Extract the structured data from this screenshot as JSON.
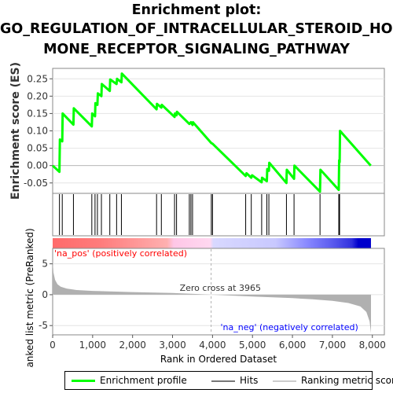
{
  "title_lines": [
    "Enrichment plot:",
    "GO_REGULATION_OF_INTRACELLULAR_STEROID_HOR",
    "MONE_RECEPTOR_SIGNALING_PATHWAY"
  ],
  "colors": {
    "enrichment_line": "#00ff00",
    "hit_line": "#000000",
    "metric_fill": "#b0b0b0",
    "pos_label": "#ff0000",
    "neg_label": "#0000ff",
    "zero_line": "#b0b0b0"
  },
  "chart_data": [
    {
      "type": "line",
      "panel": "enrichment",
      "ylabel": "Enrichment score (ES)",
      "xlim": [
        0,
        8300
      ],
      "ylim": [
        -0.08,
        0.28
      ],
      "yticks": [
        "0.25",
        "0.20",
        "0.15",
        "0.10",
        "0.05",
        "0.00",
        "-0.05"
      ],
      "ytick_values": [
        0.25,
        0.2,
        0.15,
        0.1,
        0.05,
        0.0,
        -0.05
      ],
      "series": [
        {
          "name": "Enrichment profile",
          "points": [
            [
              0,
              0.0
            ],
            [
              170,
              -0.018
            ],
            [
              180,
              0.075
            ],
            [
              240,
              0.07
            ],
            [
              250,
              0.15
            ],
            [
              520,
              0.118
            ],
            [
              530,
              0.165
            ],
            [
              980,
              0.113
            ],
            [
              990,
              0.15
            ],
            [
              1060,
              0.142
            ],
            [
              1070,
              0.18
            ],
            [
              1120,
              0.175
            ],
            [
              1130,
              0.208
            ],
            [
              1220,
              0.2
            ],
            [
              1230,
              0.235
            ],
            [
              1430,
              0.215
            ],
            [
              1440,
              0.248
            ],
            [
              1600,
              0.235
            ],
            [
              1610,
              0.25
            ],
            [
              1720,
              0.24
            ],
            [
              1730,
              0.265
            ],
            [
              2600,
              0.162
            ],
            [
              2610,
              0.178
            ],
            [
              2720,
              0.167
            ],
            [
              2730,
              0.175
            ],
            [
              3050,
              0.14
            ],
            [
              3060,
              0.15
            ],
            [
              3100,
              0.145
            ],
            [
              3110,
              0.155
            ],
            [
              3420,
              0.12
            ],
            [
              3460,
              0.125
            ],
            [
              3500,
              0.117
            ],
            [
              3510,
              0.125
            ],
            [
              3970,
              0.065
            ],
            [
              4000,
              0.063
            ],
            [
              4830,
              -0.03
            ],
            [
              4850,
              -0.022
            ],
            [
              4970,
              -0.035
            ],
            [
              4990,
              -0.028
            ],
            [
              5230,
              -0.048
            ],
            [
              5240,
              -0.035
            ],
            [
              5360,
              -0.045
            ],
            [
              5370,
              -0.01
            ],
            [
              5410,
              -0.015
            ],
            [
              5420,
              0.008
            ],
            [
              5850,
              -0.05
            ],
            [
              5860,
              -0.012
            ],
            [
              6040,
              -0.038
            ],
            [
              6050,
              0.0
            ],
            [
              6690,
              -0.075
            ],
            [
              6700,
              -0.012
            ],
            [
              7160,
              -0.07
            ],
            [
              7170,
              0.015
            ],
            [
              7180,
              0.01
            ],
            [
              7190,
              0.1
            ],
            [
              7960,
              0.0
            ]
          ]
        }
      ]
    },
    {
      "type": "scatter",
      "panel": "hits",
      "series": [
        {
          "name": "Hits",
          "x": [
            170,
            240,
            520,
            980,
            1060,
            1120,
            1220,
            1430,
            1600,
            1720,
            2600,
            2720,
            3050,
            3100,
            3420,
            3460,
            3500,
            3970,
            4000,
            4830,
            4970,
            5230,
            5360,
            5410,
            5850,
            6040,
            6690,
            7160,
            7170,
            7180
          ]
        }
      ]
    },
    {
      "type": "area",
      "panel": "ranked_list",
      "xlabel": "Rank in Ordered Dataset",
      "ylabel": "Ranked list metric (PreRanked)",
      "xlim": [
        0,
        8300
      ],
      "ylim": [
        -6.5,
        7.5
      ],
      "xticks": [
        "0",
        "1,000",
        "2,000",
        "3,000",
        "4,000",
        "5,000",
        "6,000",
        "7,000",
        "8,000"
      ],
      "xtick_values": [
        0,
        1000,
        2000,
        3000,
        4000,
        5000,
        6000,
        7000,
        8000
      ],
      "yticks": [
        "5",
        "0",
        "-5"
      ],
      "ytick_values": [
        5,
        0,
        -5
      ],
      "series": [
        {
          "name": "Ranking metric scores",
          "points": [
            [
              0,
              5.5
            ],
            [
              20,
              3.6
            ],
            [
              60,
              2.4
            ],
            [
              120,
              1.7
            ],
            [
              200,
              1.3
            ],
            [
              350,
              1.0
            ],
            [
              600,
              0.75
            ],
            [
              1000,
              0.62
            ],
            [
              2000,
              0.42
            ],
            [
              3000,
              0.28
            ],
            [
              3965,
              0.0
            ],
            [
              5000,
              -0.3
            ],
            [
              6000,
              -0.55
            ],
            [
              6500,
              -0.75
            ],
            [
              7000,
              -1.0
            ],
            [
              7400,
              -1.35
            ],
            [
              7700,
              -1.9
            ],
            [
              7850,
              -2.8
            ],
            [
              7930,
              -4.3
            ],
            [
              7965,
              -6.2
            ]
          ]
        }
      ],
      "annotations": {
        "zero_cross": "Zero cross at 3965",
        "pos_label": "'na_pos' (positively correlated)",
        "neg_label": "'na_neg' (negatively correlated)"
      }
    }
  ],
  "legend": {
    "enrichment_profile": "Enrichment profile",
    "hits": "Hits",
    "ranking_metric": "Ranking metric scores"
  }
}
